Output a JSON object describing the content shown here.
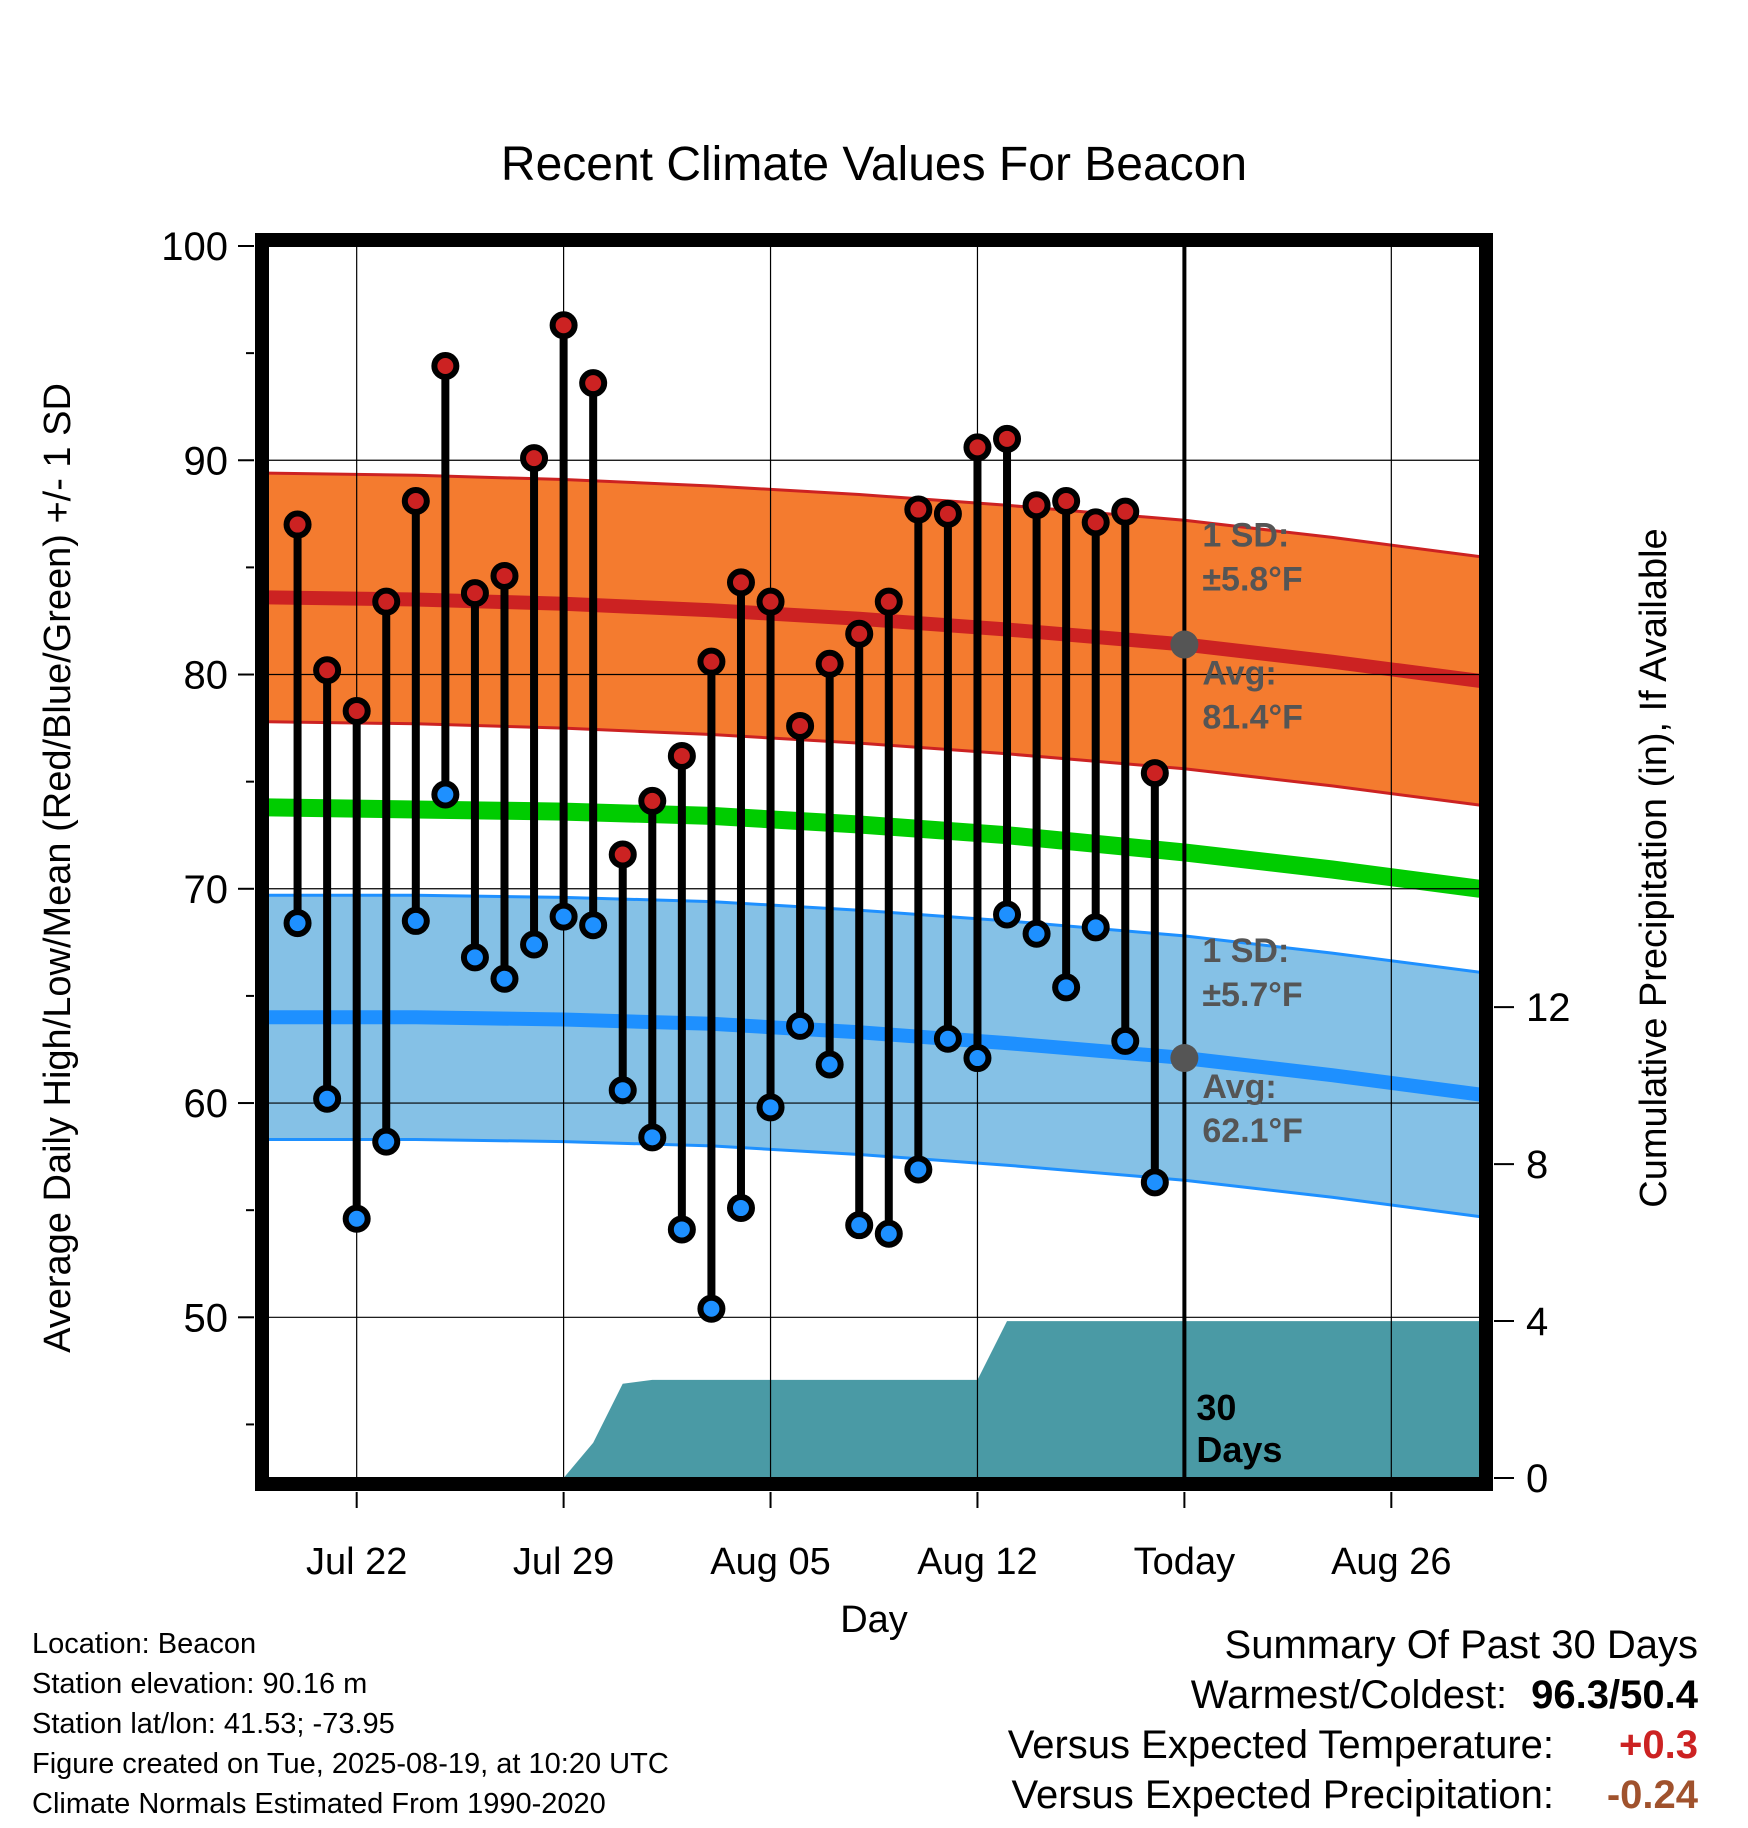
{
  "chart_data": {
    "type": "line",
    "title": "Recent Climate Values For Beacon",
    "xlabel": "Day",
    "ylabel": "Average Daily High/Low/Mean (Red/Blue/Green) +/- 1 SD",
    "ylabel_right": "Cumulative Precipitation (in), If Available",
    "ylim": [
      42.5,
      100
    ],
    "ylim_right": [
      0,
      31.4
    ],
    "yticks": [
      "100",
      "90",
      "80",
      "70",
      "60",
      "50"
    ],
    "yticks_right": [
      "0",
      "4",
      "8",
      "12"
    ],
    "xlim": [
      "2025-07-19",
      "2025-08-29"
    ],
    "xticks": [
      {
        "date": "2025-07-22",
        "label": "Jul 22"
      },
      {
        "date": "2025-07-29",
        "label": "Jul 29"
      },
      {
        "date": "2025-08-05",
        "label": "Aug 05"
      },
      {
        "date": "2025-08-12",
        "label": "Aug 12"
      },
      {
        "date": "2025-08-19",
        "label": "Today"
      },
      {
        "date": "2025-08-26",
        "label": "Aug 26"
      }
    ],
    "grid": true,
    "today": "2025-08-19",
    "window_label": "30\nDays",
    "daily": [
      {
        "date": "2025-07-20",
        "high": 87.0,
        "low": 68.4
      },
      {
        "date": "2025-07-21",
        "high": 80.2,
        "low": 60.2
      },
      {
        "date": "2025-07-22",
        "high": 78.3,
        "low": 54.6
      },
      {
        "date": "2025-07-23",
        "high": 83.4,
        "low": 58.2
      },
      {
        "date": "2025-07-24",
        "high": 88.1,
        "low": 68.5
      },
      {
        "date": "2025-07-25",
        "high": 94.4,
        "low": 74.4
      },
      {
        "date": "2025-07-26",
        "high": 83.8,
        "low": 66.8
      },
      {
        "date": "2025-07-27",
        "high": 84.6,
        "low": 65.8
      },
      {
        "date": "2025-07-28",
        "high": 90.1,
        "low": 67.4
      },
      {
        "date": "2025-07-29",
        "high": 96.3,
        "low": 68.7
      },
      {
        "date": "2025-07-30",
        "high": 93.6,
        "low": 68.3
      },
      {
        "date": "2025-07-31",
        "high": 71.6,
        "low": 60.6
      },
      {
        "date": "2025-08-01",
        "high": 74.1,
        "low": 58.4
      },
      {
        "date": "2025-08-02",
        "high": 76.2,
        "low": 54.1
      },
      {
        "date": "2025-08-03",
        "high": 80.6,
        "low": 50.4
      },
      {
        "date": "2025-08-04",
        "high": 84.3,
        "low": 55.1
      },
      {
        "date": "2025-08-05",
        "high": 83.4,
        "low": 59.8
      },
      {
        "date": "2025-08-06",
        "high": 77.6,
        "low": 63.6
      },
      {
        "date": "2025-08-07",
        "high": 80.5,
        "low": 61.8
      },
      {
        "date": "2025-08-08",
        "high": 81.9,
        "low": 54.3
      },
      {
        "date": "2025-08-09",
        "high": 83.4,
        "low": 53.9
      },
      {
        "date": "2025-08-10",
        "high": 87.7,
        "low": 56.9
      },
      {
        "date": "2025-08-11",
        "high": 87.5,
        "low": 63.0
      },
      {
        "date": "2025-08-12",
        "high": 90.6,
        "low": 62.1
      },
      {
        "date": "2025-08-13",
        "high": 91.0,
        "low": 68.8
      },
      {
        "date": "2025-08-14",
        "high": 87.9,
        "low": 67.9
      },
      {
        "date": "2025-08-15",
        "high": 88.1,
        "low": 65.4
      },
      {
        "date": "2025-08-16",
        "high": 87.1,
        "low": 68.2
      },
      {
        "date": "2025-08-17",
        "high": 87.6,
        "low": 62.9
      },
      {
        "date": "2025-08-18",
        "high": 75.4,
        "low": 56.3
      }
    ],
    "normals": {
      "dates": [
        "2025-07-19",
        "2025-07-24",
        "2025-07-29",
        "2025-08-03",
        "2025-08-08",
        "2025-08-13",
        "2025-08-19",
        "2025-08-24",
        "2025-08-29"
      ],
      "high_avg": [
        83.6,
        83.5,
        83.3,
        83.0,
        82.6,
        82.1,
        81.4,
        80.6,
        79.7
      ],
      "high_sd": 5.8,
      "low_avg": [
        64.0,
        64.0,
        63.9,
        63.7,
        63.3,
        62.8,
        62.1,
        61.3,
        60.4
      ],
      "low_sd": 5.7,
      "mean_avg": [
        73.8,
        73.7,
        73.6,
        73.4,
        73.0,
        72.5,
        71.7,
        70.9,
        70.0
      ]
    },
    "precip_cumulative": [
      {
        "date": "2025-07-29",
        "value": 0.0
      },
      {
        "date": "2025-07-30",
        "value": 0.9
      },
      {
        "date": "2025-07-31",
        "value": 2.4
      },
      {
        "date": "2025-08-01",
        "value": 2.5
      },
      {
        "date": "2025-08-12",
        "value": 2.5
      },
      {
        "date": "2025-08-13",
        "value": 4.0
      },
      {
        "date": "2025-08-29",
        "value": 4.0
      }
    ],
    "annotations": {
      "high_sd_label": "1 SD:",
      "high_sd_value": "±5.8°F",
      "high_avg_label": "Avg:",
      "high_avg_value": "81.4°F",
      "low_sd_label": "1 SD:",
      "low_sd_value": "±5.7°F",
      "low_avg_label": "Avg:",
      "low_avg_value": "62.1°F"
    },
    "colors": {
      "high_band": "#f47b2f",
      "high_line": "#cc2222",
      "low_band": "#85c1e6",
      "low_line": "#1e90ff",
      "mean_line": "#00cc00",
      "precip": "#4a9aa5",
      "high_marker": "#cc2222",
      "low_marker": "#1e90ff",
      "annotation_text": "#555555",
      "summary_temp": "#cc2222",
      "summary_precip": "#a0522d"
    }
  },
  "info": {
    "location": "Location: Beacon",
    "elevation": "Station elevation: 90.16 m",
    "latlon": "Station lat/lon: 41.53; -73.95",
    "created": "Figure created on Tue, 2025-08-19, at 10:20 UTC",
    "normals": "Climate Normals Estimated From 1990-2020"
  },
  "summary": {
    "title": "Summary Of Past 30 Days",
    "warm_cold_label": "Warmest/Coldest:",
    "warm_cold_value": "96.3/50.4",
    "temp_label": "Versus Expected Temperature:",
    "temp_value": "+0.3",
    "precip_label": "Versus Expected Precipitation:",
    "precip_value": "-0.24"
  }
}
